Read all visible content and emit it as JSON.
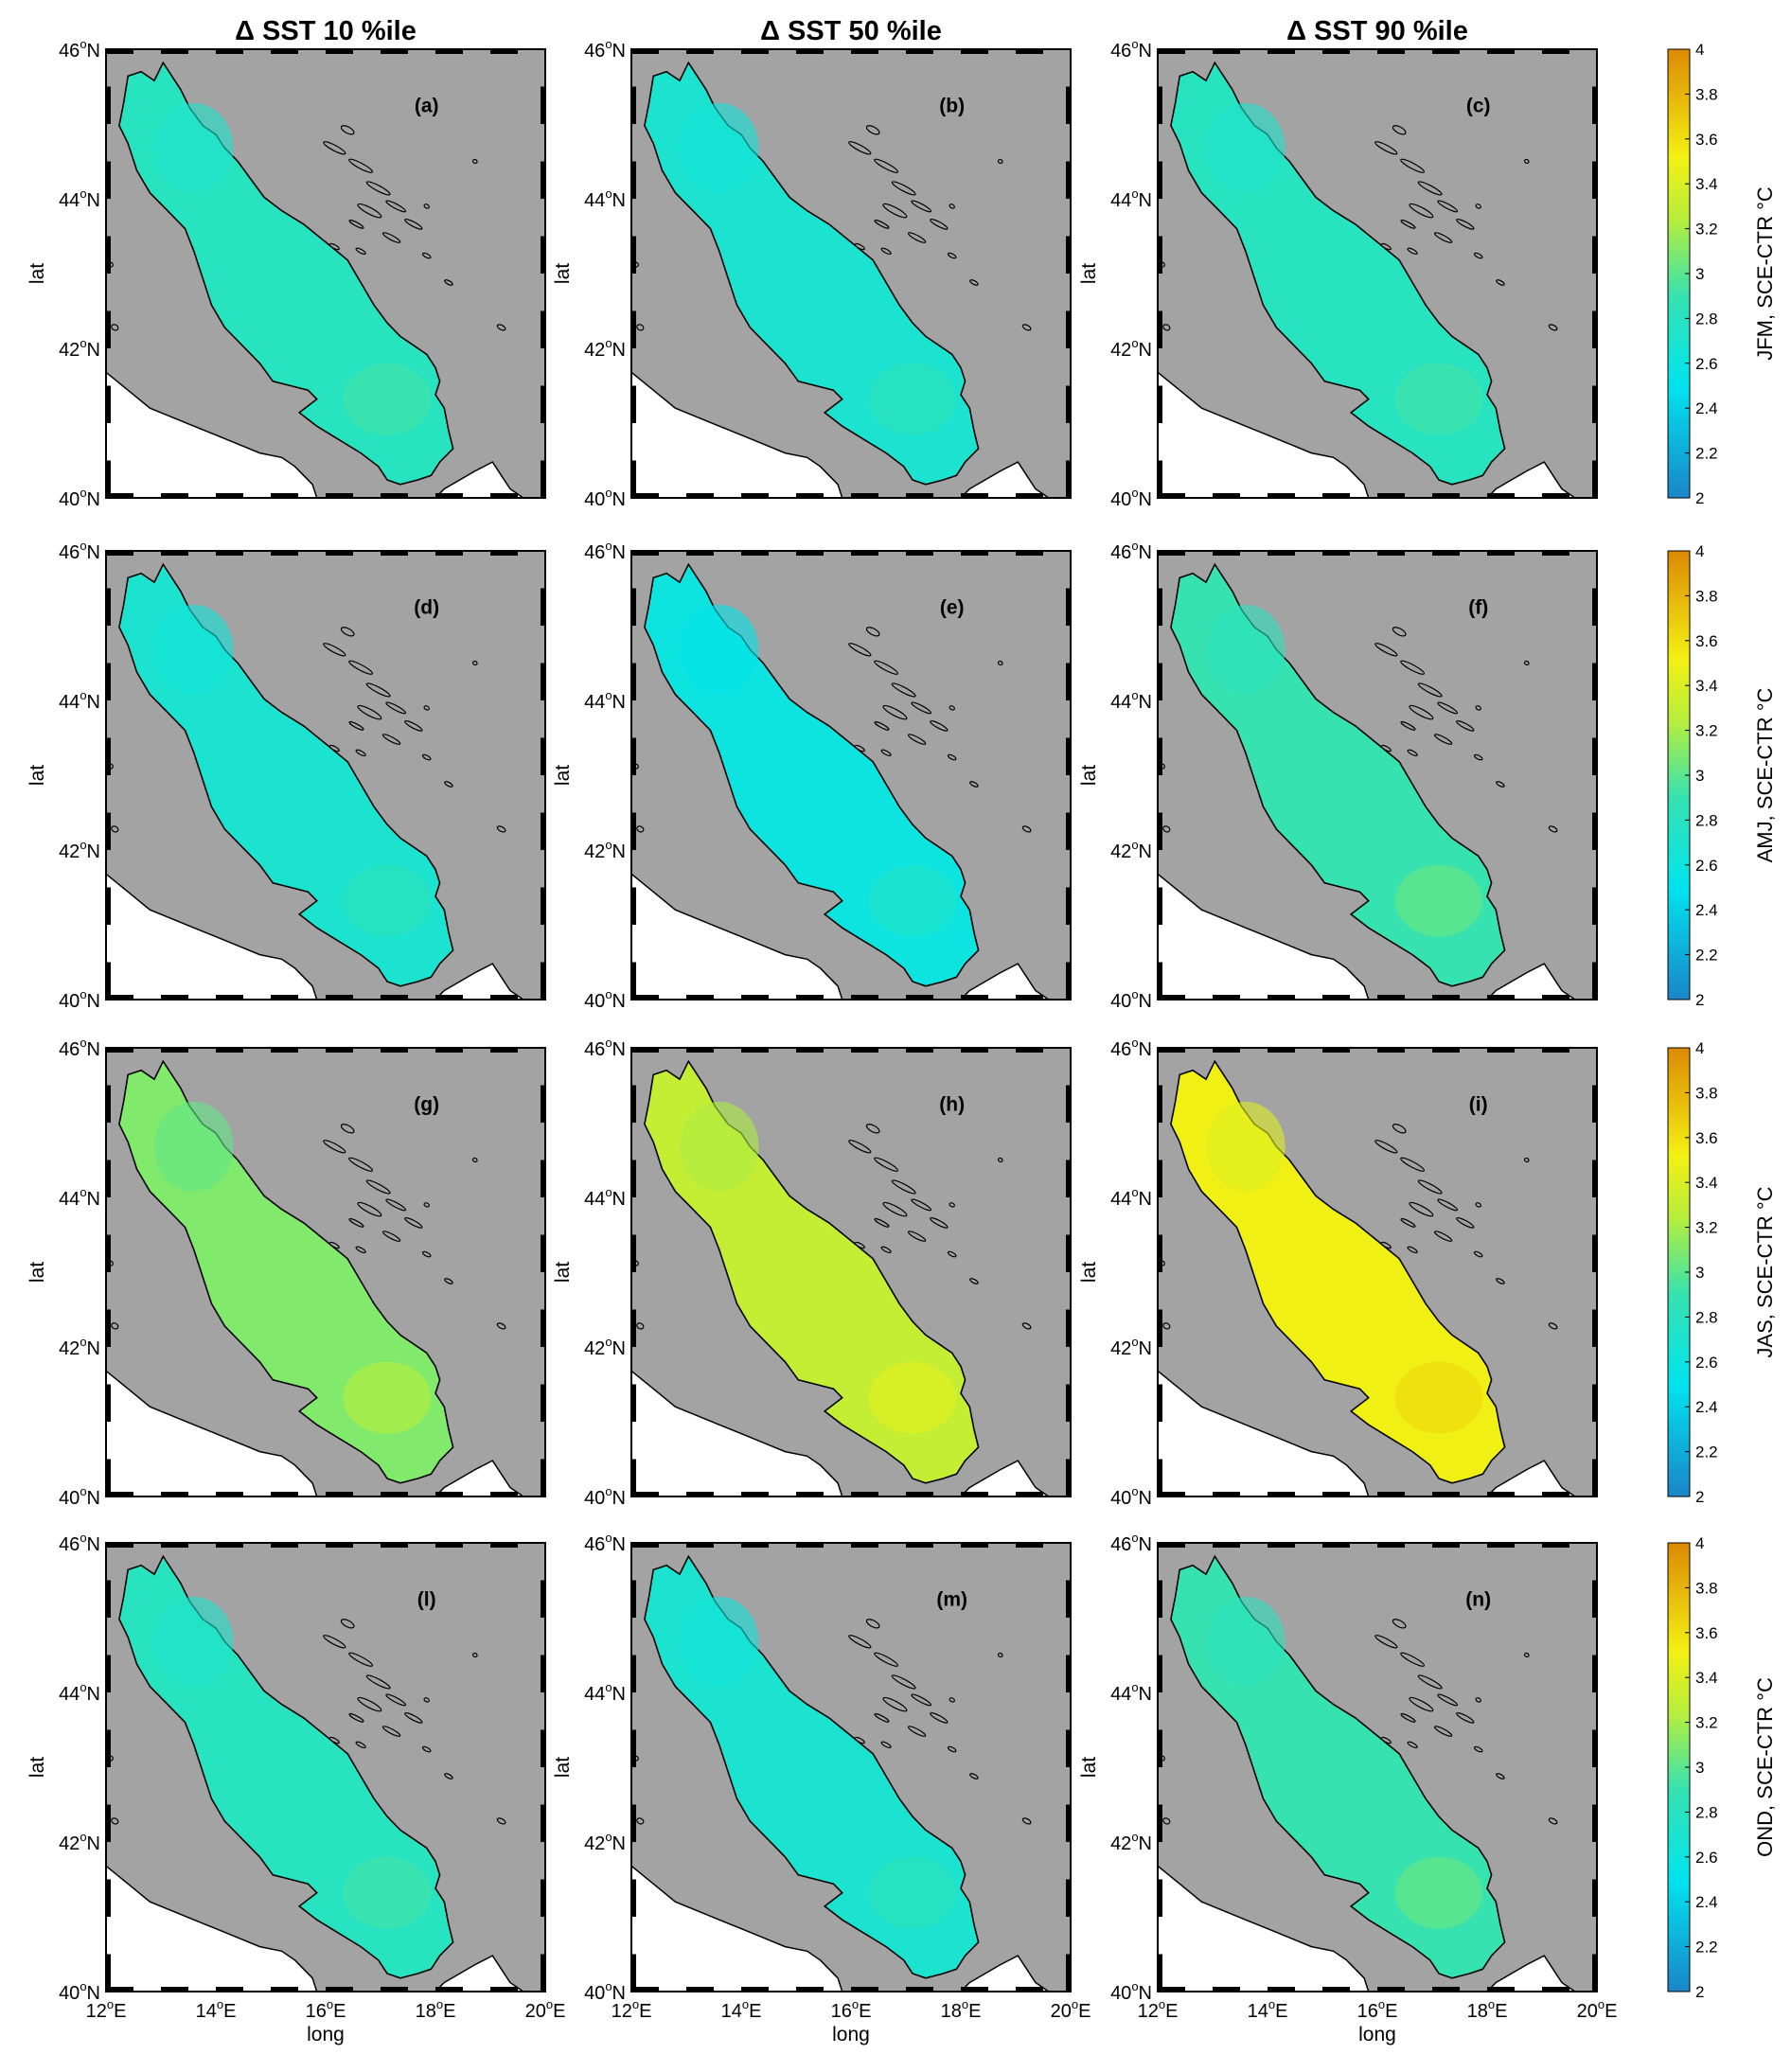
{
  "column_titles": [
    "Δ SST 10 %ile",
    "Δ SST 50 %ile",
    "Δ SST 90 %ile"
  ],
  "row_colorbar_labels": [
    "JFM, SCE-CTR °C",
    "AMJ, SCE-CTR °C",
    "JAS, SCE-CTR °C",
    "OND, SCE-CTR °C"
  ],
  "panel_letters": [
    "(a)",
    "(b)",
    "(c)",
    "(d)",
    "(e)",
    "(f)",
    "(g)",
    "(h)",
    "(i)",
    "(l)",
    "(m)",
    "(n)"
  ],
  "y_axis_label": "lat",
  "x_axis_label": "long",
  "lat_ticks": [
    "40",
    "42",
    "44",
    "46"
  ],
  "lat_suffix": "N",
  "lon_ticks": [
    "12",
    "14",
    "16",
    "18",
    "20"
  ],
  "lon_suffix": "E",
  "degree_symbol": "o",
  "colorbar_ticks": [
    "2",
    "2.2",
    "2.4",
    "2.6",
    "2.8",
    "3",
    "3.2",
    "3.4",
    "3.6",
    "3.8",
    "4"
  ],
  "colorbar_range": [
    2,
    4
  ],
  "colormap": [
    "#1a86c8",
    "#00e4ee",
    "#36e2b0",
    "#b6ee3c",
    "#f4f012",
    "#dc8a04"
  ],
  "map": {
    "lat_range": [
      40,
      46
    ],
    "lon_range": [
      12,
      20
    ],
    "land_color": "#a3a3a3",
    "outside_color": "#ffffff",
    "coast_color": "#000000"
  },
  "chart_data": {
    "type": "heatmap",
    "variable": "SCE-CTR SST difference",
    "unit": "°C",
    "rows": [
      "JFM",
      "AMJ",
      "JAS",
      "OND"
    ],
    "columns": [
      "10 %ile",
      "50 %ile",
      "90 %ile"
    ],
    "typical_values": [
      [
        2.8,
        2.7,
        2.8
      ],
      [
        2.7,
        2.6,
        2.9
      ],
      [
        3.1,
        3.3,
        3.5
      ],
      [
        2.8,
        2.7,
        2.9
      ]
    ],
    "color_range": [
      2,
      4
    ]
  }
}
